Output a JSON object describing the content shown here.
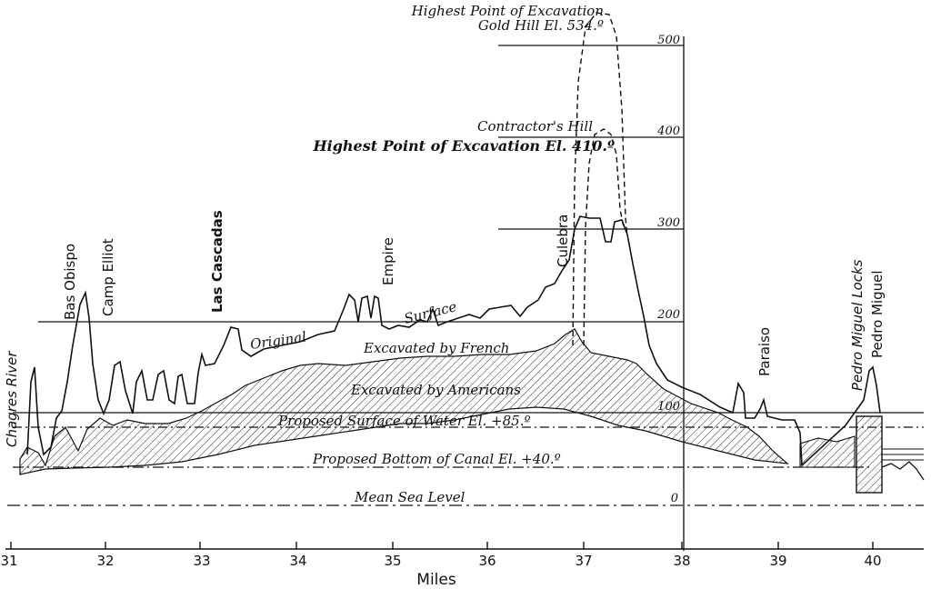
{
  "x_axis": {
    "label": "Miles",
    "ticks": [
      "31",
      "32",
      "33",
      "34",
      "35",
      "36",
      "37",
      "38",
      "39",
      "40"
    ]
  },
  "elevation_scale": {
    "ticks": [
      "500",
      "400",
      "300",
      "200",
      "100",
      "0"
    ]
  },
  "places": {
    "chagres": "Chagres River",
    "bas_obispo": "Bas Obispo",
    "camp_elliot": "Camp Elliot",
    "las_cascadas": "Las Cascadas",
    "empire": "Empire",
    "culebra": "Culebra",
    "paraiso": "Paraiso",
    "pedro_miguel_locks": "Pedro Miguel Locks",
    "pedro_miguel": "Pedro Miguel"
  },
  "annotations": {
    "gold_hill_1": "Highest Point of Excavation",
    "gold_hill_2": "Gold Hill El. 534.º",
    "contractors_1": "Contractor's Hill",
    "contractors_2": "Highest Point of Excavation El. 410.º",
    "original_1": "Original",
    "original_2": "Surface",
    "french": "Excavated by French",
    "americans": "Excavated by Americans",
    "water": "Proposed Surface of Water El. +85.º",
    "bottom": "Proposed Bottom of Canal El. +40.º",
    "msl": "Mean Sea Level"
  },
  "colors": {
    "ink": "#111111",
    "paper": "#ffffff"
  }
}
